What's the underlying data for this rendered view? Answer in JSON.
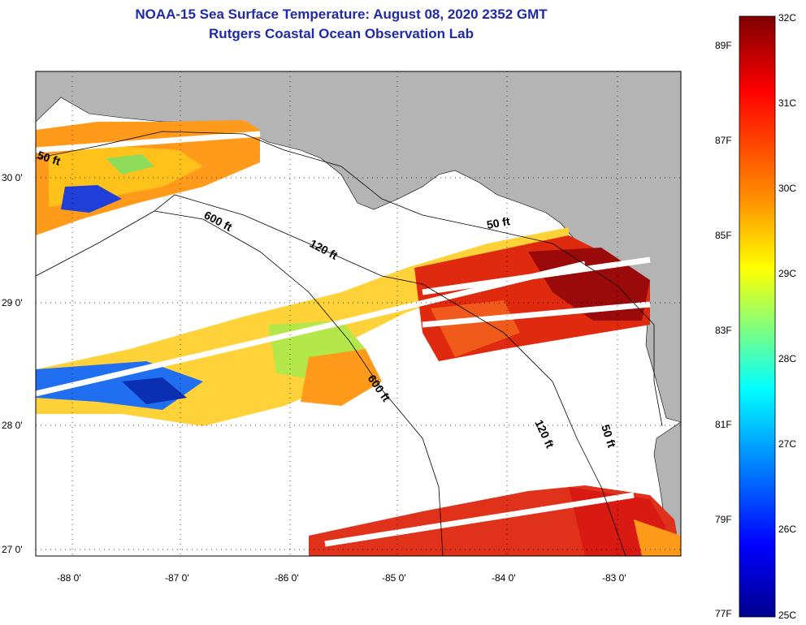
{
  "header": {
    "title": "NOAA-15 Sea Surface Temperature:  August 08, 2020 2352 GMT",
    "subtitle": "Rutgers Coastal Ocean Observation Lab"
  },
  "map": {
    "lat_ticks": [
      "30 0'",
      "29 0'",
      "28 0'",
      "27 0'"
    ],
    "lon_ticks": [
      "-88 0'",
      "-87 0'",
      "-86 0'",
      "-85 0'",
      "-84 0'",
      "-83 0'"
    ],
    "contour_labels": [
      "50 ft",
      "600 ft",
      "120 ft",
      "50 ft",
      "600 ft",
      "120 ft",
      "50 ft"
    ]
  },
  "colorbar": {
    "celsius": [
      "32C",
      "31C",
      "30C",
      "29C",
      "28C",
      "27C",
      "26C",
      "25C"
    ],
    "fahrenheit": [
      "89F",
      "87F",
      "85F",
      "83F",
      "81F",
      "79F",
      "77F"
    ]
  },
  "colors": {
    "title": "#1f2aa8",
    "land": "#b4b4b4",
    "ocean": "#ffffff"
  }
}
